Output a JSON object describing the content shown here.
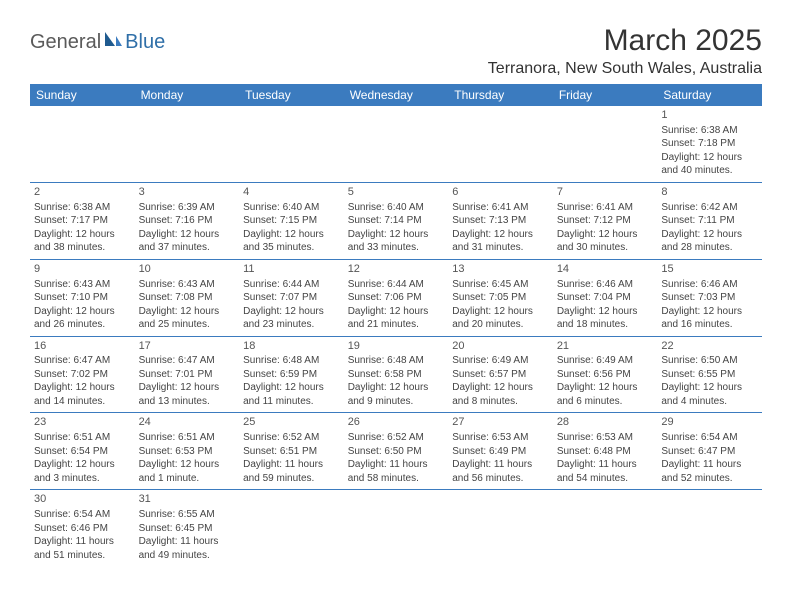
{
  "logo": {
    "text_general": "General",
    "text_blue": "Blue"
  },
  "title": "March 2025",
  "location": "Terranora, New South Wales, Australia",
  "header_bg": "#3b7bbf",
  "header_fg": "#ffffff",
  "cell_border": "#3b7bbf",
  "weekdays": [
    "Sunday",
    "Monday",
    "Tuesday",
    "Wednesday",
    "Thursday",
    "Friday",
    "Saturday"
  ],
  "weeks": [
    [
      {
        "blank": true
      },
      {
        "blank": true
      },
      {
        "blank": true
      },
      {
        "blank": true
      },
      {
        "blank": true
      },
      {
        "blank": true
      },
      {
        "day": "1",
        "sunrise": "Sunrise: 6:38 AM",
        "sunset": "Sunset: 7:18 PM",
        "daylight1": "Daylight: 12 hours",
        "daylight2": "and 40 minutes."
      }
    ],
    [
      {
        "day": "2",
        "sunrise": "Sunrise: 6:38 AM",
        "sunset": "Sunset: 7:17 PM",
        "daylight1": "Daylight: 12 hours",
        "daylight2": "and 38 minutes."
      },
      {
        "day": "3",
        "sunrise": "Sunrise: 6:39 AM",
        "sunset": "Sunset: 7:16 PM",
        "daylight1": "Daylight: 12 hours",
        "daylight2": "and 37 minutes."
      },
      {
        "day": "4",
        "sunrise": "Sunrise: 6:40 AM",
        "sunset": "Sunset: 7:15 PM",
        "daylight1": "Daylight: 12 hours",
        "daylight2": "and 35 minutes."
      },
      {
        "day": "5",
        "sunrise": "Sunrise: 6:40 AM",
        "sunset": "Sunset: 7:14 PM",
        "daylight1": "Daylight: 12 hours",
        "daylight2": "and 33 minutes."
      },
      {
        "day": "6",
        "sunrise": "Sunrise: 6:41 AM",
        "sunset": "Sunset: 7:13 PM",
        "daylight1": "Daylight: 12 hours",
        "daylight2": "and 31 minutes."
      },
      {
        "day": "7",
        "sunrise": "Sunrise: 6:41 AM",
        "sunset": "Sunset: 7:12 PM",
        "daylight1": "Daylight: 12 hours",
        "daylight2": "and 30 minutes."
      },
      {
        "day": "8",
        "sunrise": "Sunrise: 6:42 AM",
        "sunset": "Sunset: 7:11 PM",
        "daylight1": "Daylight: 12 hours",
        "daylight2": "and 28 minutes."
      }
    ],
    [
      {
        "day": "9",
        "sunrise": "Sunrise: 6:43 AM",
        "sunset": "Sunset: 7:10 PM",
        "daylight1": "Daylight: 12 hours",
        "daylight2": "and 26 minutes."
      },
      {
        "day": "10",
        "sunrise": "Sunrise: 6:43 AM",
        "sunset": "Sunset: 7:08 PM",
        "daylight1": "Daylight: 12 hours",
        "daylight2": "and 25 minutes."
      },
      {
        "day": "11",
        "sunrise": "Sunrise: 6:44 AM",
        "sunset": "Sunset: 7:07 PM",
        "daylight1": "Daylight: 12 hours",
        "daylight2": "and 23 minutes."
      },
      {
        "day": "12",
        "sunrise": "Sunrise: 6:44 AM",
        "sunset": "Sunset: 7:06 PM",
        "daylight1": "Daylight: 12 hours",
        "daylight2": "and 21 minutes."
      },
      {
        "day": "13",
        "sunrise": "Sunrise: 6:45 AM",
        "sunset": "Sunset: 7:05 PM",
        "daylight1": "Daylight: 12 hours",
        "daylight2": "and 20 minutes."
      },
      {
        "day": "14",
        "sunrise": "Sunrise: 6:46 AM",
        "sunset": "Sunset: 7:04 PM",
        "daylight1": "Daylight: 12 hours",
        "daylight2": "and 18 minutes."
      },
      {
        "day": "15",
        "sunrise": "Sunrise: 6:46 AM",
        "sunset": "Sunset: 7:03 PM",
        "daylight1": "Daylight: 12 hours",
        "daylight2": "and 16 minutes."
      }
    ],
    [
      {
        "day": "16",
        "sunrise": "Sunrise: 6:47 AM",
        "sunset": "Sunset: 7:02 PM",
        "daylight1": "Daylight: 12 hours",
        "daylight2": "and 14 minutes."
      },
      {
        "day": "17",
        "sunrise": "Sunrise: 6:47 AM",
        "sunset": "Sunset: 7:01 PM",
        "daylight1": "Daylight: 12 hours",
        "daylight2": "and 13 minutes."
      },
      {
        "day": "18",
        "sunrise": "Sunrise: 6:48 AM",
        "sunset": "Sunset: 6:59 PM",
        "daylight1": "Daylight: 12 hours",
        "daylight2": "and 11 minutes."
      },
      {
        "day": "19",
        "sunrise": "Sunrise: 6:48 AM",
        "sunset": "Sunset: 6:58 PM",
        "daylight1": "Daylight: 12 hours",
        "daylight2": "and 9 minutes."
      },
      {
        "day": "20",
        "sunrise": "Sunrise: 6:49 AM",
        "sunset": "Sunset: 6:57 PM",
        "daylight1": "Daylight: 12 hours",
        "daylight2": "and 8 minutes."
      },
      {
        "day": "21",
        "sunrise": "Sunrise: 6:49 AM",
        "sunset": "Sunset: 6:56 PM",
        "daylight1": "Daylight: 12 hours",
        "daylight2": "and 6 minutes."
      },
      {
        "day": "22",
        "sunrise": "Sunrise: 6:50 AM",
        "sunset": "Sunset: 6:55 PM",
        "daylight1": "Daylight: 12 hours",
        "daylight2": "and 4 minutes."
      }
    ],
    [
      {
        "day": "23",
        "sunrise": "Sunrise: 6:51 AM",
        "sunset": "Sunset: 6:54 PM",
        "daylight1": "Daylight: 12 hours",
        "daylight2": "and 3 minutes."
      },
      {
        "day": "24",
        "sunrise": "Sunrise: 6:51 AM",
        "sunset": "Sunset: 6:53 PM",
        "daylight1": "Daylight: 12 hours",
        "daylight2": "and 1 minute."
      },
      {
        "day": "25",
        "sunrise": "Sunrise: 6:52 AM",
        "sunset": "Sunset: 6:51 PM",
        "daylight1": "Daylight: 11 hours",
        "daylight2": "and 59 minutes."
      },
      {
        "day": "26",
        "sunrise": "Sunrise: 6:52 AM",
        "sunset": "Sunset: 6:50 PM",
        "daylight1": "Daylight: 11 hours",
        "daylight2": "and 58 minutes."
      },
      {
        "day": "27",
        "sunrise": "Sunrise: 6:53 AM",
        "sunset": "Sunset: 6:49 PM",
        "daylight1": "Daylight: 11 hours",
        "daylight2": "and 56 minutes."
      },
      {
        "day": "28",
        "sunrise": "Sunrise: 6:53 AM",
        "sunset": "Sunset: 6:48 PM",
        "daylight1": "Daylight: 11 hours",
        "daylight2": "and 54 minutes."
      },
      {
        "day": "29",
        "sunrise": "Sunrise: 6:54 AM",
        "sunset": "Sunset: 6:47 PM",
        "daylight1": "Daylight: 11 hours",
        "daylight2": "and 52 minutes."
      }
    ],
    [
      {
        "day": "30",
        "sunrise": "Sunrise: 6:54 AM",
        "sunset": "Sunset: 6:46 PM",
        "daylight1": "Daylight: 11 hours",
        "daylight2": "and 51 minutes."
      },
      {
        "day": "31",
        "sunrise": "Sunrise: 6:55 AM",
        "sunset": "Sunset: 6:45 PM",
        "daylight1": "Daylight: 11 hours",
        "daylight2": "and 49 minutes."
      },
      {
        "blank": true
      },
      {
        "blank": true
      },
      {
        "blank": true
      },
      {
        "blank": true
      },
      {
        "blank": true
      }
    ]
  ]
}
